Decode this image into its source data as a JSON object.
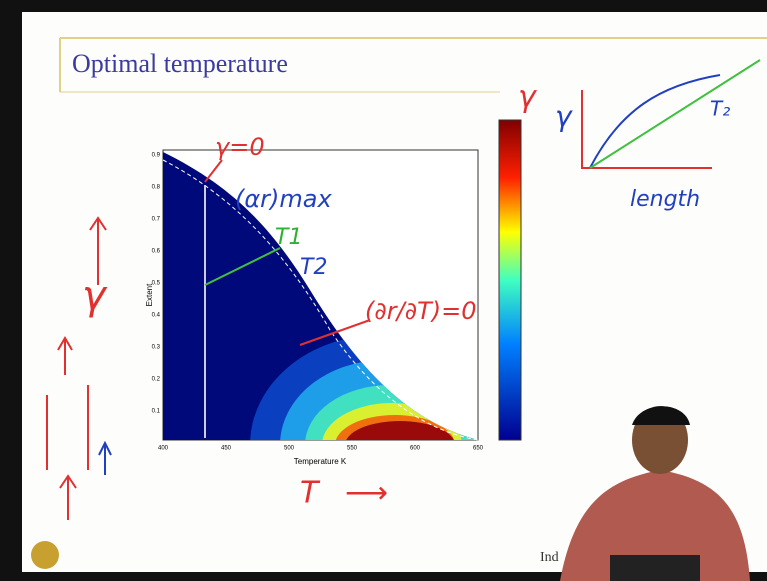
{
  "slide": {
    "title": "Optimal temperature",
    "footer": "Ind"
  },
  "plot": {
    "ylabel": "Extent",
    "xlabel": "Temperature K",
    "xticks": [
      "400",
      "450",
      "500",
      "550",
      "600",
      "650"
    ],
    "yticks": [
      "0.9",
      "0.8",
      "0.7",
      "0.6",
      "0.5",
      "0.4",
      "0.3",
      "0.2",
      "0.1"
    ]
  },
  "annotations": {
    "gamma_zero": "γ=0",
    "rate_max": "(αr)max",
    "t1": "T1",
    "t2": "T2",
    "deriv": "(∂r/∂T)=0",
    "colorbar_symbol": "γ",
    "left_symbol": "γ",
    "t_axis": "T",
    "arrow": "⟶"
  },
  "inset": {
    "ylabel": "γ",
    "xlabel": "length",
    "curve": "T₂"
  }
}
